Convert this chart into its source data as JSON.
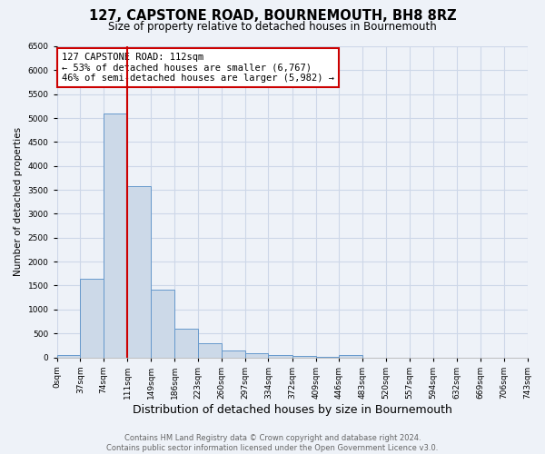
{
  "title": "127, CAPSTONE ROAD, BOURNEMOUTH, BH8 8RZ",
  "subtitle": "Size of property relative to detached houses in Bournemouth",
  "xlabel": "Distribution of detached houses by size in Bournemouth",
  "ylabel": "Number of detached properties",
  "bin_edges": [
    0,
    37,
    74,
    111,
    149,
    186,
    223,
    260,
    297,
    334,
    372,
    409,
    446,
    483,
    520,
    557,
    594,
    632,
    669,
    706,
    743
  ],
  "bin_counts": [
    50,
    1650,
    5090,
    3580,
    1420,
    600,
    295,
    145,
    95,
    45,
    30,
    10,
    45,
    0,
    0,
    0,
    0,
    0,
    0,
    0
  ],
  "bar_facecolor": "#ccd9e8",
  "bar_edgecolor": "#6699cc",
  "vline_x": 111,
  "vline_color": "#cc0000",
  "annotation_line1": "127 CAPSTONE ROAD: 112sqm",
  "annotation_line2": "← 53% of detached houses are smaller (6,767)",
  "annotation_line3": "46% of semi-detached houses are larger (5,982) →",
  "annotation_box_facecolor": "white",
  "annotation_box_edgecolor": "#cc0000",
  "ylim": [
    0,
    6500
  ],
  "yticks": [
    0,
    500,
    1000,
    1500,
    2000,
    2500,
    3000,
    3500,
    4000,
    4500,
    5000,
    5500,
    6000,
    6500
  ],
  "xtick_labels": [
    "0sqm",
    "37sqm",
    "74sqm",
    "111sqm",
    "149sqm",
    "186sqm",
    "223sqm",
    "260sqm",
    "297sqm",
    "334sqm",
    "372sqm",
    "409sqm",
    "446sqm",
    "483sqm",
    "520sqm",
    "557sqm",
    "594sqm",
    "632sqm",
    "669sqm",
    "706sqm",
    "743sqm"
  ],
  "grid_color": "#cdd7e8",
  "background_color": "#eef2f8",
  "footer_line1": "Contains HM Land Registry data © Crown copyright and database right 2024.",
  "footer_line2": "Contains public sector information licensed under the Open Government Licence v3.0.",
  "title_fontsize": 10.5,
  "subtitle_fontsize": 8.5,
  "xlabel_fontsize": 9,
  "ylabel_fontsize": 7.5,
  "tick_fontsize": 6.5,
  "annotation_fontsize": 7.5,
  "footer_fontsize": 6
}
